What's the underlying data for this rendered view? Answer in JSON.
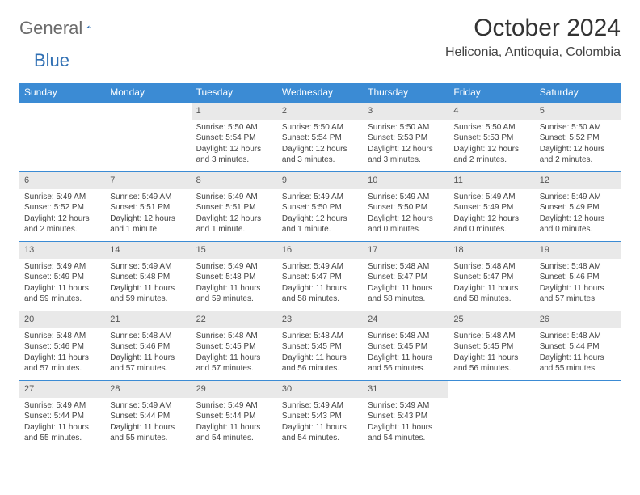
{
  "logo": {
    "part1": "General",
    "part2": "Blue"
  },
  "header": {
    "month_year": "October 2024",
    "location": "Heliconia, Antioquia, Colombia"
  },
  "colors": {
    "header_bg": "#3b8bd4",
    "header_text": "#ffffff",
    "daynum_bg": "#e9e9e9",
    "border": "#3b8bd4",
    "logo_gray": "#6b6b6b",
    "logo_blue": "#2f6fb3"
  },
  "weekdays": [
    "Sunday",
    "Monday",
    "Tuesday",
    "Wednesday",
    "Thursday",
    "Friday",
    "Saturday"
  ],
  "weeks": [
    [
      null,
      null,
      {
        "n": "1",
        "sr": "5:50 AM",
        "ss": "5:54 PM",
        "dl": "12 hours and 3 minutes."
      },
      {
        "n": "2",
        "sr": "5:50 AM",
        "ss": "5:54 PM",
        "dl": "12 hours and 3 minutes."
      },
      {
        "n": "3",
        "sr": "5:50 AM",
        "ss": "5:53 PM",
        "dl": "12 hours and 3 minutes."
      },
      {
        "n": "4",
        "sr": "5:50 AM",
        "ss": "5:53 PM",
        "dl": "12 hours and 2 minutes."
      },
      {
        "n": "5",
        "sr": "5:50 AM",
        "ss": "5:52 PM",
        "dl": "12 hours and 2 minutes."
      }
    ],
    [
      {
        "n": "6",
        "sr": "5:49 AM",
        "ss": "5:52 PM",
        "dl": "12 hours and 2 minutes."
      },
      {
        "n": "7",
        "sr": "5:49 AM",
        "ss": "5:51 PM",
        "dl": "12 hours and 1 minute."
      },
      {
        "n": "8",
        "sr": "5:49 AM",
        "ss": "5:51 PM",
        "dl": "12 hours and 1 minute."
      },
      {
        "n": "9",
        "sr": "5:49 AM",
        "ss": "5:50 PM",
        "dl": "12 hours and 1 minute."
      },
      {
        "n": "10",
        "sr": "5:49 AM",
        "ss": "5:50 PM",
        "dl": "12 hours and 0 minutes."
      },
      {
        "n": "11",
        "sr": "5:49 AM",
        "ss": "5:49 PM",
        "dl": "12 hours and 0 minutes."
      },
      {
        "n": "12",
        "sr": "5:49 AM",
        "ss": "5:49 PM",
        "dl": "12 hours and 0 minutes."
      }
    ],
    [
      {
        "n": "13",
        "sr": "5:49 AM",
        "ss": "5:49 PM",
        "dl": "11 hours and 59 minutes."
      },
      {
        "n": "14",
        "sr": "5:49 AM",
        "ss": "5:48 PM",
        "dl": "11 hours and 59 minutes."
      },
      {
        "n": "15",
        "sr": "5:49 AM",
        "ss": "5:48 PM",
        "dl": "11 hours and 59 minutes."
      },
      {
        "n": "16",
        "sr": "5:49 AM",
        "ss": "5:47 PM",
        "dl": "11 hours and 58 minutes."
      },
      {
        "n": "17",
        "sr": "5:48 AM",
        "ss": "5:47 PM",
        "dl": "11 hours and 58 minutes."
      },
      {
        "n": "18",
        "sr": "5:48 AM",
        "ss": "5:47 PM",
        "dl": "11 hours and 58 minutes."
      },
      {
        "n": "19",
        "sr": "5:48 AM",
        "ss": "5:46 PM",
        "dl": "11 hours and 57 minutes."
      }
    ],
    [
      {
        "n": "20",
        "sr": "5:48 AM",
        "ss": "5:46 PM",
        "dl": "11 hours and 57 minutes."
      },
      {
        "n": "21",
        "sr": "5:48 AM",
        "ss": "5:46 PM",
        "dl": "11 hours and 57 minutes."
      },
      {
        "n": "22",
        "sr": "5:48 AM",
        "ss": "5:45 PM",
        "dl": "11 hours and 57 minutes."
      },
      {
        "n": "23",
        "sr": "5:48 AM",
        "ss": "5:45 PM",
        "dl": "11 hours and 56 minutes."
      },
      {
        "n": "24",
        "sr": "5:48 AM",
        "ss": "5:45 PM",
        "dl": "11 hours and 56 minutes."
      },
      {
        "n": "25",
        "sr": "5:48 AM",
        "ss": "5:45 PM",
        "dl": "11 hours and 56 minutes."
      },
      {
        "n": "26",
        "sr": "5:48 AM",
        "ss": "5:44 PM",
        "dl": "11 hours and 55 minutes."
      }
    ],
    [
      {
        "n": "27",
        "sr": "5:49 AM",
        "ss": "5:44 PM",
        "dl": "11 hours and 55 minutes."
      },
      {
        "n": "28",
        "sr": "5:49 AM",
        "ss": "5:44 PM",
        "dl": "11 hours and 55 minutes."
      },
      {
        "n": "29",
        "sr": "5:49 AM",
        "ss": "5:44 PM",
        "dl": "11 hours and 54 minutes."
      },
      {
        "n": "30",
        "sr": "5:49 AM",
        "ss": "5:43 PM",
        "dl": "11 hours and 54 minutes."
      },
      {
        "n": "31",
        "sr": "5:49 AM",
        "ss": "5:43 PM",
        "dl": "11 hours and 54 minutes."
      },
      null,
      null
    ]
  ],
  "labels": {
    "sunrise": "Sunrise: ",
    "sunset": "Sunset: ",
    "daylight": "Daylight: "
  }
}
